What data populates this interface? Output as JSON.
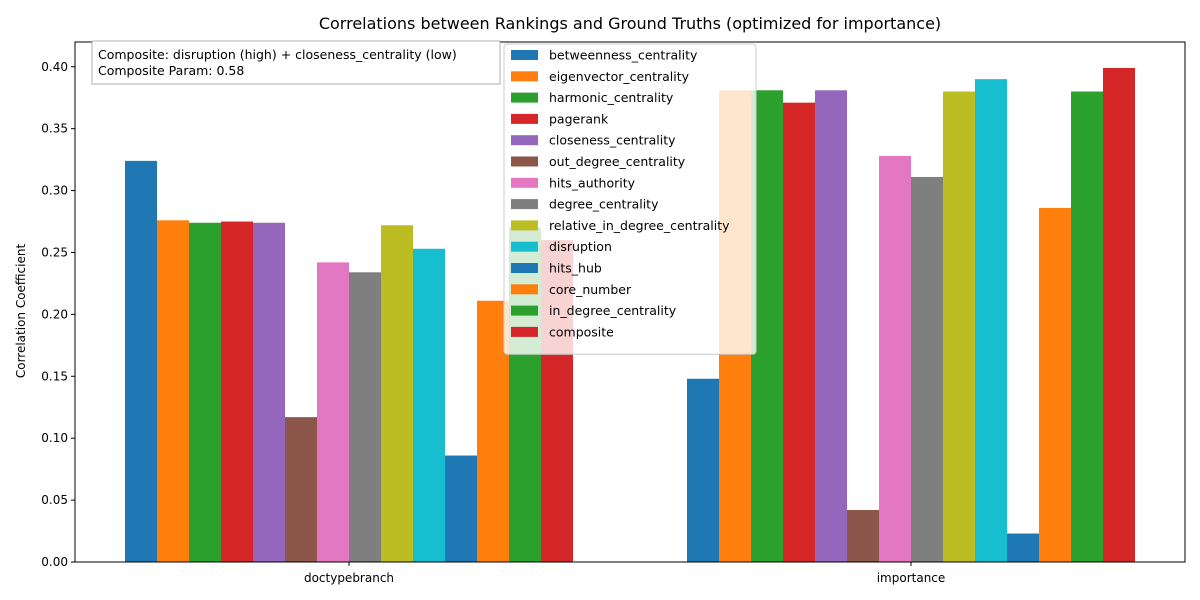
{
  "chart_data": {
    "type": "bar",
    "title": "Correlations between Rankings and Ground Truths (optimized for importance)",
    "xlabel": "",
    "ylabel": "Correlation Coefficient",
    "ylim": [
      0,
      0.42
    ],
    "yticks": [
      "0.00",
      "0.05",
      "0.10",
      "0.15",
      "0.20",
      "0.25",
      "0.30",
      "0.35",
      "0.40"
    ],
    "categories": [
      "doctypebranch",
      "importance"
    ],
    "grid": false,
    "legend_position": "top-center",
    "annotation": {
      "line1": "Composite: disruption (high) + closeness_centrality (low)",
      "line2": "Composite Param: 0.58"
    },
    "series": [
      {
        "name": "betweenness_centrality",
        "color": "#1f77b4",
        "values": [
          0.324,
          0.148
        ]
      },
      {
        "name": "eigenvector_centrality",
        "color": "#ff7f0e",
        "values": [
          0.276,
          0.381
        ]
      },
      {
        "name": "harmonic_centrality",
        "color": "#2ca02c",
        "values": [
          0.274,
          0.381
        ]
      },
      {
        "name": "pagerank",
        "color": "#d62728",
        "values": [
          0.275,
          0.371
        ]
      },
      {
        "name": "closeness_centrality",
        "color": "#9467bd",
        "values": [
          0.274,
          0.381
        ]
      },
      {
        "name": "out_degree_centrality",
        "color": "#8c564b",
        "values": [
          0.117,
          0.042
        ]
      },
      {
        "name": "hits_authority",
        "color": "#e377c2",
        "values": [
          0.242,
          0.328
        ]
      },
      {
        "name": "degree_centrality",
        "color": "#7f7f7f",
        "values": [
          0.234,
          0.311
        ]
      },
      {
        "name": "relative_in_degree_centrality",
        "color": "#bcbd22",
        "values": [
          0.272,
          0.38
        ]
      },
      {
        "name": "disruption",
        "color": "#17becf",
        "values": [
          0.253,
          0.39
        ]
      },
      {
        "name": "hits_hub",
        "color": "#1f77b4",
        "values": [
          0.086,
          0.023
        ]
      },
      {
        "name": "core_number",
        "color": "#ff7f0e",
        "values": [
          0.211,
          0.286
        ]
      },
      {
        "name": "in_degree_centrality",
        "color": "#2ca02c",
        "values": [
          0.27,
          0.38
        ]
      },
      {
        "name": "composite",
        "color": "#d62728",
        "values": [
          0.26,
          0.399
        ]
      }
    ]
  }
}
